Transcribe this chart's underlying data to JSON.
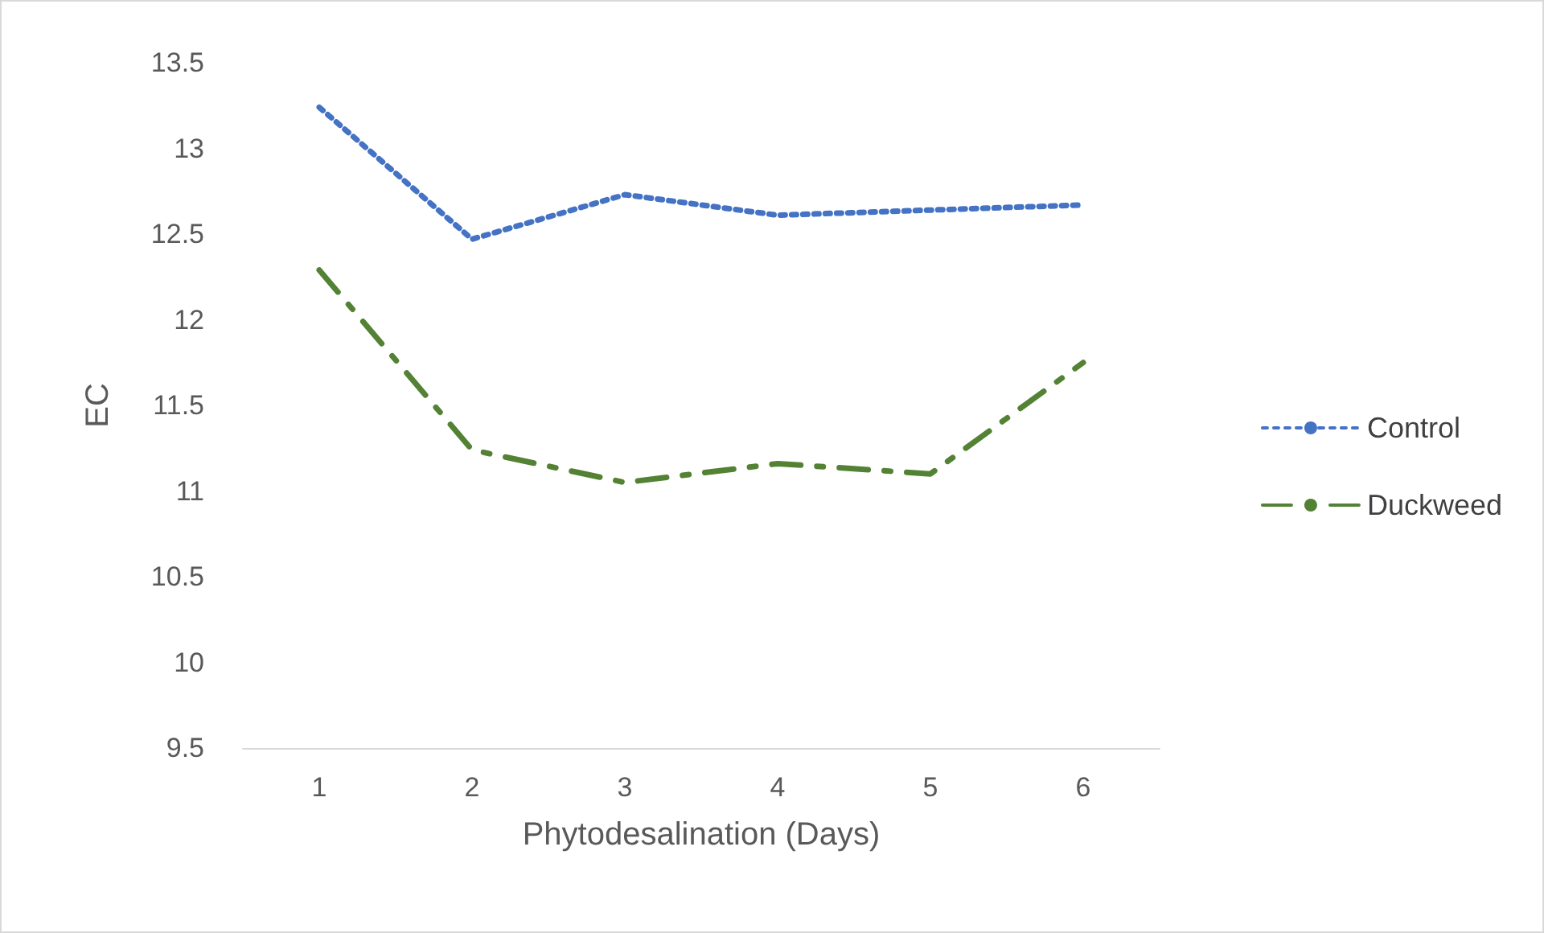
{
  "chart_data": {
    "type": "line",
    "xlabel": "Phytodesalination (Days)",
    "ylabel": "EC",
    "categories": [
      "1",
      "2",
      "3",
      "4",
      "5",
      "6"
    ],
    "series": [
      {
        "name": "Control",
        "color": "#4472c4",
        "line_style": "dotted",
        "values": [
          13.24,
          12.47,
          12.73,
          12.61,
          12.64,
          12.67
        ]
      },
      {
        "name": "Duckweed",
        "color": "#548235",
        "line_style": "dashed",
        "values": [
          12.29,
          11.24,
          11.05,
          11.16,
          11.1,
          11.75
        ]
      }
    ],
    "ylim": [
      9.5,
      13.5
    ],
    "yticks": [
      9.5,
      10,
      10.5,
      11,
      11.5,
      12,
      12.5,
      13,
      13.5
    ],
    "grid": false,
    "legend": "right",
    "marker": "none"
  }
}
